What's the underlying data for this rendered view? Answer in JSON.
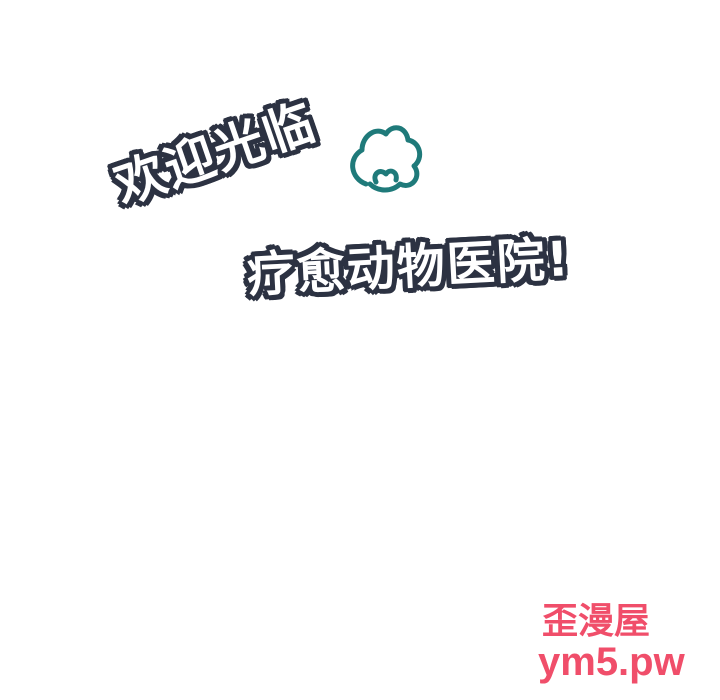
{
  "title": {
    "line1": "欢迎光临",
    "line2": "疗愈动物医院!"
  },
  "icons": {
    "decoration": "cloud-icon",
    "decoration_color": "#1f7a7a"
  },
  "watermark": {
    "top": "歪漫屋",
    "bottom": "ym5.pw",
    "color": "#f04e6a"
  }
}
